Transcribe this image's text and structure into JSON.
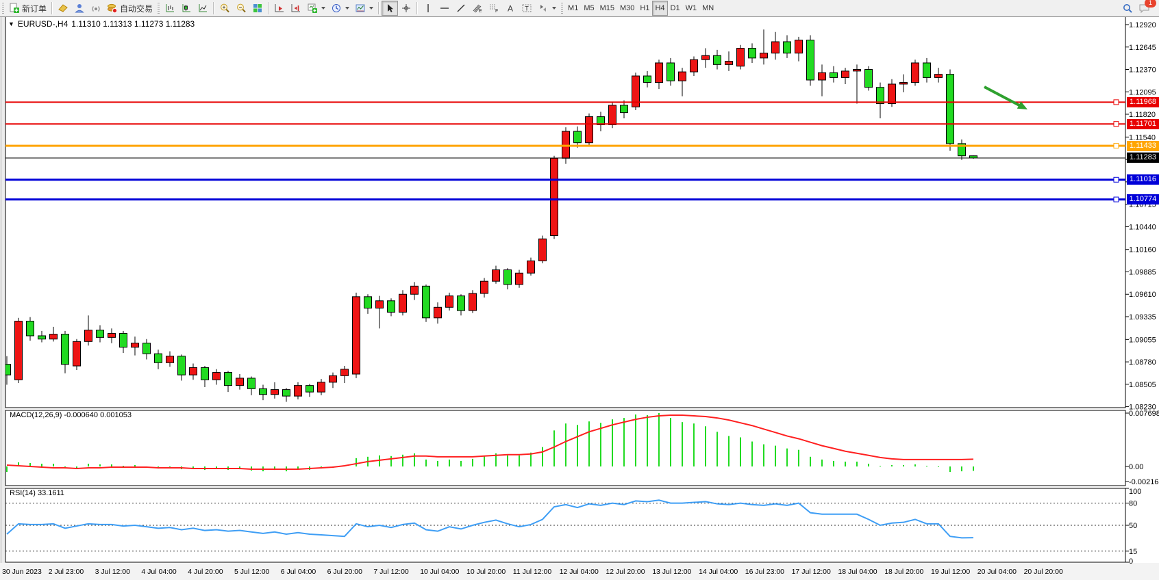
{
  "toolbar": {
    "new_order_label": "新订单",
    "auto_trading_label": "自动交易",
    "timeframes": [
      {
        "label": "M1",
        "active": false
      },
      {
        "label": "M5",
        "active": false
      },
      {
        "label": "M15",
        "active": false
      },
      {
        "label": "M30",
        "active": false
      },
      {
        "label": "H1",
        "active": false
      },
      {
        "label": "H4",
        "active": true
      },
      {
        "label": "D1",
        "active": false
      },
      {
        "label": "W1",
        "active": false
      },
      {
        "label": "MN",
        "active": false
      }
    ],
    "notification_count": "1"
  },
  "chart": {
    "title_symbol": "EURUSD-,H4",
    "title_quotes": "1.11310 1.11313 1.11273 1.11283"
  },
  "chart_data": {
    "type": "candlestick",
    "symbol": "EURUSD-",
    "timeframe": "H4",
    "current_bar": {
      "open": 1.1131,
      "high": 1.11313,
      "low": 1.11273,
      "close": 1.11283
    },
    "current_price_label": "1.11283",
    "price_scale": {
      "top_price": 1.1292,
      "bottom_price": 1.0823,
      "tick_labels": [
        "1.12920",
        "1.12645",
        "1.12370",
        "1.12095",
        "1.11820",
        "1.11540",
        "1.11265",
        "1.10990",
        "1.10715",
        "1.10440",
        "1.10160",
        "1.09885",
        "1.09610",
        "1.09335",
        "1.09055",
        "1.08780",
        "1.08505",
        "1.08230"
      ]
    },
    "time_axis_labels": [
      "30 Jun 2023",
      "2 Jul 23:00",
      "3 Jul 12:00",
      "4 Jul 04:00",
      "4 Jul 20:00",
      "5 Jul 12:00",
      "6 Jul 04:00",
      "6 Jul 20:00",
      "7 Jul 12:00",
      "10 Jul 04:00",
      "10 Jul 20:00",
      "11 Jul 12:00",
      "12 Jul 04:00",
      "12 Jul 20:00",
      "13 Jul 12:00",
      "14 Jul 04:00",
      "16 Jul 23:00",
      "17 Jul 12:00",
      "18 Jul 04:00",
      "18 Jul 20:00",
      "19 Jul 12:00",
      "20 Jul 04:00",
      "20 Jul 20:00"
    ],
    "hlines": [
      {
        "price": "1.11968",
        "value": 1.11968,
        "color": "#E80000",
        "width": 2
      },
      {
        "price": "1.11701",
        "value": 1.11701,
        "color": "#E80000",
        "width": 2
      },
      {
        "price": "1.11433",
        "value": 1.11433,
        "color": "#FFA500",
        "width": 3
      },
      {
        "price": "1.11016",
        "value": 1.11016,
        "color": "#0000D8",
        "width": 3
      },
      {
        "price": "1.10774",
        "value": 1.10774,
        "color": "#0000D8",
        "width": 3
      }
    ],
    "colors": {
      "bull_candle": "#EE1414",
      "bear_candle": "#21DB21",
      "candle_outline": "#000000",
      "macd_histogram": "#21DB21",
      "macd_signal": "#FF2020",
      "rsi_line": "#3E9EF5",
      "hline_red": "#E80000",
      "hline_orange": "#FFA500",
      "hline_blue": "#0000D8",
      "current_price_line": "#000000",
      "annotation_arrow": "#2FA12F"
    },
    "candles": [
      [
        1.0875,
        1.0885,
        1.085,
        1.0862
      ],
      [
        1.0856,
        1.0932,
        1.0852,
        1.0928
      ],
      [
        1.0928,
        1.0933,
        1.0904,
        1.091
      ],
      [
        1.091,
        1.0916,
        1.0902,
        1.0906
      ],
      [
        1.0906,
        1.0921,
        1.0903,
        1.0912
      ],
      [
        1.0912,
        1.0916,
        1.0864,
        1.0875
      ],
      [
        1.0873,
        1.0906,
        1.0868,
        1.0903
      ],
      [
        1.0903,
        1.0935,
        1.0898,
        1.0917
      ],
      [
        1.0917,
        1.0923,
        1.0902,
        1.0908
      ],
      [
        1.0908,
        1.0919,
        1.0901,
        1.0913
      ],
      [
        1.0913,
        1.0916,
        1.0889,
        1.0896
      ],
      [
        1.0896,
        1.0909,
        1.0886,
        1.0901
      ],
      [
        1.0901,
        1.0906,
        1.0881,
        1.0888
      ],
      [
        1.0888,
        1.0893,
        1.0869,
        1.0877
      ],
      [
        1.0877,
        1.0891,
        1.0872,
        1.0885
      ],
      [
        1.0885,
        1.0887,
        1.0855,
        1.0862
      ],
      [
        1.0862,
        1.0876,
        1.0856,
        1.0871
      ],
      [
        1.0871,
        1.0873,
        1.0847,
        1.0856
      ],
      [
        1.0856,
        1.0869,
        1.085,
        1.0865
      ],
      [
        1.0865,
        1.0867,
        1.0841,
        1.0849
      ],
      [
        1.0849,
        1.0863,
        1.0844,
        1.0858
      ],
      [
        1.0858,
        1.086,
        1.0837,
        1.0845
      ],
      [
        1.0845,
        1.085,
        1.0831,
        1.0838
      ],
      [
        1.0838,
        1.0853,
        1.0833,
        1.0844
      ],
      [
        1.0844,
        1.0846,
        1.0829,
        1.0836
      ],
      [
        1.0836,
        1.0853,
        1.0832,
        1.0849
      ],
      [
        1.0849,
        1.0851,
        1.0835,
        1.0841
      ],
      [
        1.0841,
        1.0857,
        1.0837,
        1.0853
      ],
      [
        1.0853,
        1.0865,
        1.0846,
        1.0861
      ],
      [
        1.0861,
        1.0873,
        1.0852,
        1.0869
      ],
      [
        1.0863,
        1.0963,
        1.0858,
        1.0958
      ],
      [
        1.0958,
        1.0961,
        1.0937,
        1.0944
      ],
      [
        1.0944,
        1.0959,
        1.0919,
        1.0953
      ],
      [
        1.0953,
        1.0956,
        1.0934,
        1.0939
      ],
      [
        1.0939,
        1.0966,
        1.0935,
        1.0961
      ],
      [
        1.0961,
        1.0976,
        1.0954,
        1.0971
      ],
      [
        1.0971,
        1.0973,
        1.0927,
        1.0932
      ],
      [
        1.0932,
        1.0951,
        1.0925,
        1.0945
      ],
      [
        1.0945,
        1.0963,
        1.0941,
        1.0959
      ],
      [
        1.0959,
        1.0961,
        1.0935,
        1.0941
      ],
      [
        1.0941,
        1.0966,
        1.0938,
        1.0962
      ],
      [
        1.0962,
        1.0981,
        1.0957,
        1.0977
      ],
      [
        1.0977,
        1.0996,
        1.0974,
        1.0991
      ],
      [
        1.0991,
        1.0993,
        1.0967,
        1.0973
      ],
      [
        1.0973,
        1.0991,
        1.0969,
        1.0987
      ],
      [
        1.0987,
        1.1006,
        1.0984,
        1.1002
      ],
      [
        1.1002,
        1.1033,
        1.0999,
        1.1029
      ],
      [
        1.1033,
        1.1131,
        1.1029,
        1.1128
      ],
      [
        1.1128,
        1.1166,
        1.1121,
        1.1161
      ],
      [
        1.1161,
        1.1167,
        1.1141,
        1.1147
      ],
      [
        1.1147,
        1.1183,
        1.1143,
        1.1179
      ],
      [
        1.1179,
        1.1185,
        1.1161,
        1.1169
      ],
      [
        1.1169,
        1.1197,
        1.1165,
        1.1193
      ],
      [
        1.1193,
        1.1199,
        1.1177,
        1.1184
      ],
      [
        1.1191,
        1.1233,
        1.1187,
        1.1229
      ],
      [
        1.1229,
        1.1235,
        1.1215,
        1.1221
      ],
      [
        1.1221,
        1.1249,
        1.1213,
        1.1245
      ],
      [
        1.1245,
        1.1251,
        1.1217,
        1.1223
      ],
      [
        1.1223,
        1.1239,
        1.1204,
        1.1234
      ],
      [
        1.1234,
        1.1253,
        1.1229,
        1.1249
      ],
      [
        1.1249,
        1.1263,
        1.1239,
        1.1254
      ],
      [
        1.1254,
        1.1261,
        1.1237,
        1.1243
      ],
      [
        1.1243,
        1.1259,
        1.1235,
        1.1247
      ],
      [
        1.1241,
        1.1267,
        1.1237,
        1.1263
      ],
      [
        1.1263,
        1.1269,
        1.1245,
        1.1251
      ],
      [
        1.1251,
        1.1286,
        1.1243,
        1.1257
      ],
      [
        1.1257,
        1.1283,
        1.1249,
        1.1271
      ],
      [
        1.1271,
        1.1279,
        1.1251,
        1.1257
      ],
      [
        1.1257,
        1.1277,
        1.1247,
        1.1273
      ],
      [
        1.1273,
        1.1279,
        1.1217,
        1.1224
      ],
      [
        1.1224,
        1.1243,
        1.1204,
        1.1233
      ],
      [
        1.1233,
        1.1241,
        1.1221,
        1.1227
      ],
      [
        1.1227,
        1.1239,
        1.1219,
        1.1235
      ],
      [
        1.1235,
        1.1243,
        1.1195,
        1.1237
      ],
      [
        1.1237,
        1.1241,
        1.1211,
        1.1215
      ],
      [
        1.1215,
        1.1221,
        1.1177,
        1.1195
      ],
      [
        1.1195,
        1.1225,
        1.1191,
        1.1219
      ],
      [
        1.1219,
        1.1231,
        1.1209,
        1.1221
      ],
      [
        1.1221,
        1.1249,
        1.1217,
        1.1245
      ],
      [
        1.1245,
        1.1251,
        1.1221,
        1.1227
      ],
      [
        1.1227,
        1.1239,
        1.1221,
        1.1231
      ],
      [
        1.1231,
        1.1237,
        1.1137,
        1.1146
      ],
      [
        1.1146,
        1.1151,
        1.1126,
        1.1131
      ],
      [
        1.1131,
        1.11313,
        1.11273,
        1.11283
      ]
    ],
    "macd": {
      "label": "MACD(12,26,9) -0.000640 0.001053",
      "params": "12,26,9",
      "main_value": "-0.000640",
      "signal_value": "0.001053",
      "axis_ticks": [
        "0.007698",
        "0.00",
        "-0.002168"
      ],
      "histogram": [
        -0.0008,
        0.0006,
        0.0005,
        0.0004,
        0.0004,
        -0.0003,
        -0.0002,
        0.0004,
        0.0003,
        0.0003,
        0.0001,
        0.0002,
        -0.0001,
        -0.0003,
        -0.0002,
        -0.0004,
        -0.0003,
        -0.0005,
        -0.0003,
        -0.0005,
        -0.0004,
        -0.0006,
        -0.0007,
        -0.0005,
        -0.0007,
        -0.0004,
        -0.0005,
        -0.0003,
        -0.0002,
        0.0001,
        0.0012,
        0.0014,
        0.0016,
        0.0015,
        0.0017,
        0.0019,
        0.001,
        0.0008,
        0.001,
        0.0008,
        0.0011,
        0.0015,
        0.0019,
        0.0016,
        0.0016,
        0.002,
        0.0028,
        0.0052,
        0.0062,
        0.006,
        0.0065,
        0.0063,
        0.0068,
        0.007,
        0.0075,
        0.0074,
        0.0077,
        0.007,
        0.0064,
        0.0062,
        0.0058,
        0.005,
        0.0044,
        0.0042,
        0.0036,
        0.0032,
        0.003,
        0.0026,
        0.0024,
        0.0014,
        0.001,
        0.0008,
        0.0007,
        0.0007,
        0.0004,
        0.0001,
        0.0002,
        0.0002,
        0.0003,
        0.0001,
        0.0,
        -0.0008,
        -0.0007,
        -0.00064
      ],
      "signal": [
        0.0002,
        0.0001,
        0.0,
        -0.0001,
        -0.0002,
        -0.0002,
        -0.0003,
        -0.0002,
        -0.0002,
        -0.0001,
        -0.0001,
        -0.0001,
        -0.0001,
        -0.0002,
        -0.0002,
        -0.0002,
        -0.0003,
        -0.0003,
        -0.0003,
        -0.0003,
        -0.0003,
        -0.0004,
        -0.0004,
        -0.0004,
        -0.0004,
        -0.0004,
        -0.0003,
        -0.0002,
        -0.0001,
        0.0001,
        0.0004,
        0.0007,
        0.0009,
        0.0011,
        0.0013,
        0.0015,
        0.0015,
        0.0014,
        0.0014,
        0.0014,
        0.0014,
        0.0015,
        0.0016,
        0.0017,
        0.0017,
        0.0018,
        0.0021,
        0.0028,
        0.0036,
        0.0043,
        0.005,
        0.0055,
        0.006,
        0.0064,
        0.0068,
        0.0071,
        0.0073,
        0.0074,
        0.0074,
        0.0073,
        0.0072,
        0.007,
        0.0067,
        0.0063,
        0.0059,
        0.0054,
        0.0049,
        0.0044,
        0.004,
        0.0035,
        0.003,
        0.0026,
        0.0022,
        0.0019,
        0.0016,
        0.0013,
        0.0011,
        0.001,
        0.001,
        0.001,
        0.001,
        0.001,
        0.001,
        0.00105
      ]
    },
    "rsi": {
      "label": "RSI(14) 33.1611",
      "period": "14",
      "value": "33.1611",
      "levels": [
        80,
        50,
        15
      ],
      "axis_ticks": [
        "100",
        "80",
        "50",
        "15",
        "0"
      ],
      "values": [
        38,
        52,
        51,
        51,
        52,
        46,
        49,
        52,
        51,
        51,
        49,
        50,
        48,
        46,
        47,
        44,
        46,
        43,
        44,
        42,
        43,
        41,
        39,
        41,
        38,
        40,
        38,
        37,
        36,
        35,
        52,
        48,
        50,
        47,
        51,
        53,
        44,
        42,
        48,
        45,
        50,
        54,
        57,
        52,
        48,
        51,
        58,
        75,
        78,
        74,
        79,
        77,
        80,
        78,
        83,
        82,
        84,
        80,
        80,
        81,
        82,
        79,
        78,
        80,
        78,
        77,
        79,
        77,
        80,
        67,
        65,
        65,
        65,
        65,
        58,
        50,
        53,
        54,
        58,
        52,
        52,
        35,
        33,
        33.16
      ]
    },
    "annotation_arrow": {
      "shape": "arrow",
      "direction": "down-right",
      "color": "#2FA12F"
    }
  }
}
